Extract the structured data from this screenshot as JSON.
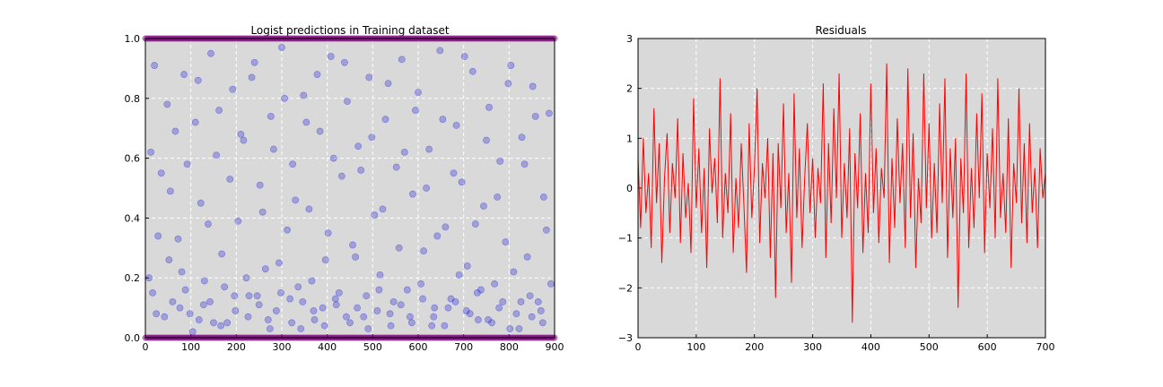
{
  "chart_data": [
    {
      "type": "scatter",
      "title": "Logist predictions in Training dataset",
      "xlabel": "",
      "ylabel": "",
      "xlim": [
        0,
        900
      ],
      "ylim": [
        0.0,
        1.0
      ],
      "xticks": [
        "0",
        "100",
        "200",
        "300",
        "400",
        "500",
        "600",
        "700",
        "800",
        "900"
      ],
      "yticks": [
        "0.0",
        "0.2",
        "0.4",
        "0.6",
        "0.8",
        "1.0"
      ],
      "grid": true,
      "background": "#d9d9d9",
      "series": [
        {
          "color": "#1f1fd6",
          "alpha": 0.3,
          "marker": "circle",
          "values": [
            [
              12,
              0.62
            ],
            [
              20,
              0.91
            ],
            [
              35,
              0.55
            ],
            [
              48,
              0.78
            ],
            [
              60,
              0.12
            ],
            [
              72,
              0.33
            ],
            [
              85,
              0.88
            ],
            [
              98,
              0.08
            ],
            [
              110,
              0.72
            ],
            [
              122,
              0.45
            ],
            [
              130,
              0.19
            ],
            [
              144,
              0.95
            ],
            [
              156,
              0.61
            ],
            [
              168,
              0.28
            ],
            [
              180,
              0.05
            ],
            [
              192,
              0.83
            ],
            [
              204,
              0.39
            ],
            [
              216,
              0.66
            ],
            [
              228,
              0.14
            ],
            [
              240,
              0.92
            ],
            [
              252,
              0.51
            ],
            [
              264,
              0.23
            ],
            [
              276,
              0.74
            ],
            [
              288,
              0.09
            ],
            [
              300,
              0.97
            ],
            [
              312,
              0.36
            ],
            [
              324,
              0.58
            ],
            [
              336,
              0.17
            ],
            [
              348,
              0.81
            ],
            [
              360,
              0.43
            ],
            [
              372,
              0.06
            ],
            [
              384,
              0.69
            ],
            [
              396,
              0.26
            ],
            [
              408,
              0.94
            ],
            [
              420,
              0.11
            ],
            [
              432,
              0.54
            ],
            [
              444,
              0.79
            ],
            [
              456,
              0.31
            ],
            [
              468,
              0.64
            ],
            [
              480,
              0.07
            ],
            [
              492,
              0.87
            ],
            [
              504,
              0.41
            ],
            [
              516,
              0.21
            ],
            [
              528,
              0.73
            ],
            [
              540,
              0.04
            ],
            [
              552,
              0.57
            ],
            [
              564,
              0.93
            ],
            [
              576,
              0.16
            ],
            [
              588,
              0.48
            ],
            [
              600,
              0.82
            ],
            [
              612,
              0.29
            ],
            [
              624,
              0.63
            ],
            [
              636,
              0.1
            ],
            [
              648,
              0.96
            ],
            [
              660,
              0.37
            ],
            [
              672,
              0.13
            ],
            [
              684,
              0.71
            ],
            [
              696,
              0.52
            ],
            [
              708,
              0.24
            ],
            [
              720,
              0.89
            ],
            [
              732,
              0.06
            ],
            [
              744,
              0.44
            ],
            [
              756,
              0.77
            ],
            [
              768,
              0.18
            ],
            [
              780,
              0.59
            ],
            [
              792,
              0.32
            ],
            [
              804,
              0.91
            ],
            [
              816,
              0.08
            ],
            [
              828,
              0.67
            ],
            [
              840,
              0.27
            ],
            [
              852,
              0.84
            ],
            [
              864,
              0.12
            ],
            [
              876,
              0.47
            ],
            [
              888,
              0.75
            ],
            [
              16,
              0.15
            ],
            [
              28,
              0.34
            ],
            [
              42,
              0.07
            ],
            [
              55,
              0.49
            ],
            [
              66,
              0.69
            ],
            [
              80,
              0.22
            ],
            [
              92,
              0.58
            ],
            [
              104,
              0.02
            ],
            [
              116,
              0.86
            ],
            [
              128,
              0.11
            ],
            [
              138,
              0.38
            ],
            [
              150,
              0.05
            ],
            [
              162,
              0.76
            ],
            [
              174,
              0.17
            ],
            [
              186,
              0.53
            ],
            [
              198,
              0.09
            ],
            [
              210,
              0.68
            ],
            [
              222,
              0.2
            ],
            [
              234,
              0.87
            ],
            [
              246,
              0.14
            ],
            [
              258,
              0.42
            ],
            [
              270,
              0.06
            ],
            [
              282,
              0.63
            ],
            [
              294,
              0.25
            ],
            [
              306,
              0.8
            ],
            [
              318,
              0.13
            ],
            [
              330,
              0.46
            ],
            [
              342,
              0.03
            ],
            [
              354,
              0.72
            ],
            [
              366,
              0.19
            ],
            [
              378,
              0.88
            ],
            [
              390,
              0.1
            ],
            [
              402,
              0.35
            ],
            [
              414,
              0.6
            ],
            [
              426,
              0.15
            ],
            [
              438,
              0.92
            ],
            [
              450,
              0.05
            ],
            [
              462,
              0.27
            ],
            [
              474,
              0.56
            ],
            [
              486,
              0.14
            ],
            [
              498,
              0.67
            ],
            [
              510,
              0.09
            ],
            [
              522,
              0.43
            ],
            [
              534,
              0.85
            ],
            [
              546,
              0.12
            ],
            [
              558,
              0.3
            ],
            [
              570,
              0.62
            ],
            [
              582,
              0.07
            ],
            [
              594,
              0.76
            ],
            [
              606,
              0.18
            ],
            [
              618,
              0.5
            ],
            [
              630,
              0.04
            ],
            [
              642,
              0.34
            ],
            [
              654,
              0.73
            ],
            [
              666,
              0.1
            ],
            [
              678,
              0.55
            ],
            [
              690,
              0.21
            ],
            [
              702,
              0.94
            ],
            [
              714,
              0.08
            ],
            [
              726,
              0.38
            ],
            [
              738,
              0.16
            ],
            [
              750,
              0.66
            ],
            [
              762,
              0.05
            ],
            [
              774,
              0.47
            ],
            [
              786,
              0.12
            ],
            [
              798,
              0.85
            ],
            [
              810,
              0.22
            ],
            [
              822,
              0.03
            ],
            [
              834,
              0.58
            ],
            [
              846,
              0.14
            ],
            [
              858,
              0.74
            ],
            [
              870,
              0.09
            ],
            [
              882,
              0.36
            ],
            [
              8,
              0.2
            ],
            [
              24,
              0.08
            ],
            [
              52,
              0.26
            ],
            [
              76,
              0.1
            ],
            [
              88,
              0.16
            ],
            [
              118,
              0.06
            ],
            [
              142,
              0.12
            ],
            [
              166,
              0.04
            ],
            [
              196,
              0.14
            ],
            [
              226,
              0.07
            ],
            [
              250,
              0.11
            ],
            [
              274,
              0.03
            ],
            [
              298,
              0.15
            ],
            [
              322,
              0.05
            ],
            [
              346,
              0.12
            ],
            [
              370,
              0.09
            ],
            [
              394,
              0.04
            ],
            [
              418,
              0.13
            ],
            [
              442,
              0.07
            ],
            [
              466,
              0.1
            ],
            [
              490,
              0.03
            ],
            [
              514,
              0.16
            ],
            [
              538,
              0.08
            ],
            [
              562,
              0.11
            ],
            [
              586,
              0.05
            ],
            [
              610,
              0.13
            ],
            [
              634,
              0.07
            ],
            [
              658,
              0.04
            ],
            [
              682,
              0.12
            ],
            [
              706,
              0.09
            ],
            [
              730,
              0.15
            ],
            [
              754,
              0.06
            ],
            [
              778,
              0.1
            ],
            [
              802,
              0.03
            ],
            [
              826,
              0.12
            ],
            [
              850,
              0.07
            ],
            [
              874,
              0.05
            ],
            [
              892,
              0.18
            ]
          ]
        },
        {
          "color": "#800080",
          "alpha": 0.5,
          "marker": "circle",
          "note_type": "edge-band-bottom",
          "values": [
            [
              0,
              0.0
            ],
            [
              900,
              0.0
            ]
          ]
        },
        {
          "color": "#800080",
          "alpha": 0.5,
          "marker": "circle",
          "note_type": "edge-band-top",
          "values": [
            [
              0,
              1.0
            ],
            [
              900,
              1.0
            ]
          ]
        }
      ]
    },
    {
      "type": "line",
      "title": "Residuals",
      "xlabel": "",
      "ylabel": "",
      "xlim": [
        0,
        710
      ],
      "ylim": [
        -3,
        3
      ],
      "xticks": [
        "0",
        "100",
        "200",
        "300",
        "400",
        "500",
        "600",
        "700"
      ],
      "yticks": [
        "−3",
        "−2",
        "−1",
        "0",
        "1",
        "2",
        "3"
      ],
      "grid": true,
      "background": "#d9d9d9",
      "series": [
        {
          "color": "#ff0000",
          "values": [
            0.6,
            -0.8,
            1.0,
            -0.5,
            0.3,
            -1.2,
            1.6,
            -0.3,
            0.9,
            -1.5,
            0.2,
            1.1,
            -0.9,
            0.5,
            -0.2,
            1.4,
            -1.1,
            0.7,
            -0.6,
            0.1,
            -1.3,
            1.8,
            -0.4,
            0.8,
            -0.9,
            0.4,
            -1.6,
            1.2,
            -0.1,
            0.6,
            -0.7,
            2.2,
            -1.0,
            0.3,
            -0.5,
            1.5,
            -1.3,
            0.2,
            -0.8,
            0.9,
            -0.3,
            -1.7,
            1.3,
            -0.6,
            0.4,
            2.0,
            -1.1,
            0.5,
            -0.2,
            1.0,
            -1.4,
            0.7,
            -2.2,
            0.9,
            -0.4,
            1.7,
            -0.9,
            0.3,
            -1.9,
            1.9,
            -0.6,
            0.8,
            -1.2,
            0.2,
            1.3,
            -0.5,
            0.6,
            -1.0,
            0.4,
            -0.3,
            2.1,
            -1.4,
            0.9,
            -0.7,
            1.6,
            -0.2,
            2.3,
            -1.0,
            0.5,
            -0.6,
            1.2,
            -2.7,
            0.7,
            -0.4,
            1.5,
            -1.3,
            0.3,
            -0.9,
            2.1,
            -0.5,
            0.8,
            -1.1,
            0.4,
            -0.2,
            2.5,
            -1.5,
            0.6,
            -0.8,
            1.4,
            -0.3,
            0.9,
            -1.2,
            2.4,
            -0.6,
            1.1,
            -1.6,
            0.2,
            -0.7,
            2.3,
            -0.4,
            1.3,
            -1.0,
            0.5,
            -0.9,
            1.7,
            -0.3,
            2.2,
            -1.4,
            0.8,
            -0.6,
            1.0,
            -2.4,
            0.6,
            -0.5,
            2.3,
            -1.2,
            0.4,
            -0.8,
            1.5,
            -0.2,
            1.9,
            -1.3,
            0.7,
            -0.4,
            1.2,
            -1.0,
            2.2,
            -0.6,
            0.3,
            -0.9,
            1.4,
            -1.6,
            0.5,
            -0.3,
            2.0,
            -0.7,
            0.9,
            -1.1,
            1.3,
            -0.5,
            0.4,
            -1.2,
            0.8,
            -0.2,
            0.3
          ]
        }
      ]
    }
  ]
}
